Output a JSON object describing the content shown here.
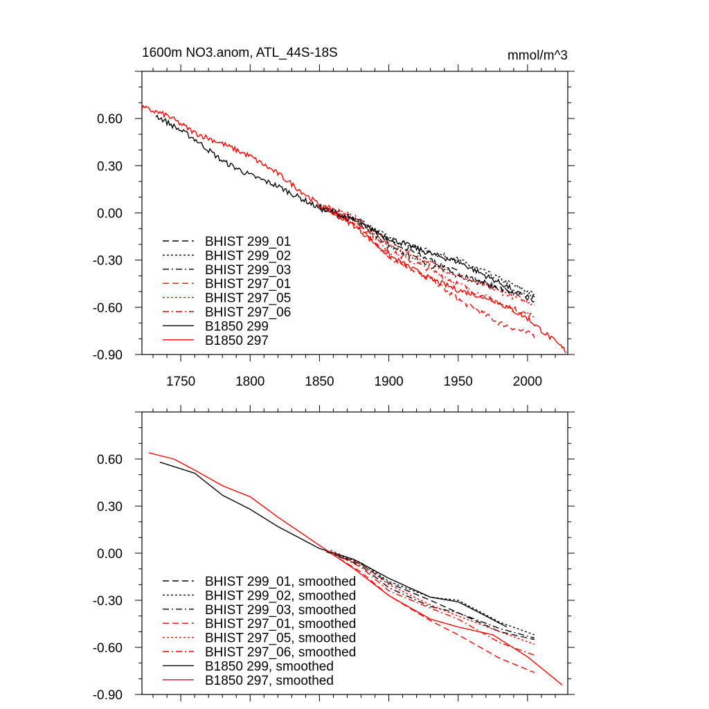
{
  "chart_data": [
    {
      "type": "line",
      "title": "1600m NO3.anom, ATL_44S-18S",
      "units": "mmol/m^3",
      "xlim": [
        1722,
        2029
      ],
      "ylim": [
        -0.9,
        0.9
      ],
      "xticks": [
        1750,
        1800,
        1850,
        1900,
        1950,
        2000
      ],
      "xtick_labels": [
        "1750",
        "1800",
        "1850",
        "1900",
        "1950",
        "2000"
      ],
      "yticks": [
        0.6,
        0.3,
        0.0,
        -0.3,
        -0.6,
        -0.9
      ],
      "ytick_labels": [
        "0.60",
        "0.30",
        "0.00",
        "-0.30",
        "-0.60",
        "-0.90"
      ],
      "legend_position": "bottom-left",
      "smoothed": false,
      "series": [
        {
          "name": "BHIST 299_01",
          "color": "#000000",
          "dash": "dashed",
          "points": [
            [
              1850,
              0.04
            ],
            [
              1880,
              -0.06
            ],
            [
              1900,
              -0.18
            ],
            [
              1930,
              -0.3
            ],
            [
              1950,
              -0.38
            ],
            [
              1980,
              -0.48
            ],
            [
              2005,
              -0.56
            ]
          ]
        },
        {
          "name": "BHIST 299_02",
          "color": "#000000",
          "dash": "dotted",
          "points": [
            [
              1850,
              0.04
            ],
            [
              1880,
              -0.05
            ],
            [
              1900,
              -0.16
            ],
            [
              1930,
              -0.25
            ],
            [
              1950,
              -0.3
            ],
            [
              1980,
              -0.42
            ],
            [
              2005,
              -0.52
            ]
          ]
        },
        {
          "name": "BHIST 299_03",
          "color": "#000000",
          "dash": "dashdot",
          "points": [
            [
              1850,
              0.04
            ],
            [
              1880,
              -0.07
            ],
            [
              1900,
              -0.22
            ],
            [
              1930,
              -0.33
            ],
            [
              1950,
              -0.4
            ],
            [
              1980,
              -0.48
            ],
            [
              2005,
              -0.54
            ]
          ]
        },
        {
          "name": "BHIST 297_01",
          "color": "#ff0000",
          "dash": "dashed",
          "points": [
            [
              1855,
              0.03
            ],
            [
              1880,
              -0.1
            ],
            [
              1900,
              -0.28
            ],
            [
              1930,
              -0.42
            ],
            [
              1950,
              -0.55
            ],
            [
              1980,
              -0.7
            ],
            [
              2005,
              -0.78
            ]
          ]
        },
        {
          "name": "BHIST 297_05",
          "color": "#ff0000",
          "dash": "dotted",
          "points": [
            [
              1855,
              0.05
            ],
            [
              1880,
              -0.05
            ],
            [
              1900,
              -0.2
            ],
            [
              1930,
              -0.32
            ],
            [
              1950,
              -0.4
            ],
            [
              1980,
              -0.5
            ],
            [
              2005,
              -0.58
            ]
          ]
        },
        {
          "name": "BHIST 297_06",
          "color": "#ff0000",
          "dash": "dashdot",
          "points": [
            [
              1855,
              0.04
            ],
            [
              1880,
              -0.08
            ],
            [
              1900,
              -0.24
            ],
            [
              1930,
              -0.36
            ],
            [
              1950,
              -0.45
            ],
            [
              1980,
              -0.58
            ],
            [
              2005,
              -0.66
            ]
          ]
        },
        {
          "name": "B1850 299",
          "color": "#000000",
          "dash": "solid",
          "points": [
            [
              1732,
              0.62
            ],
            [
              1760,
              0.47
            ],
            [
              1780,
              0.33
            ],
            [
              1800,
              0.24
            ],
            [
              1820,
              0.17
            ],
            [
              1850,
              0.03
            ],
            [
              1875,
              -0.05
            ],
            [
              1900,
              -0.16
            ],
            [
              1930,
              -0.26
            ],
            [
              1950,
              -0.31
            ],
            [
              1970,
              -0.4
            ],
            [
              1988,
              -0.48
            ]
          ]
        },
        {
          "name": "B1850 297",
          "color": "#ff0000",
          "dash": "solid",
          "points": [
            [
              1722,
              0.67
            ],
            [
              1740,
              0.62
            ],
            [
              1760,
              0.51
            ],
            [
              1780,
              0.44
            ],
            [
              1800,
              0.36
            ],
            [
              1820,
              0.25
            ],
            [
              1850,
              0.05
            ],
            [
              1875,
              -0.08
            ],
            [
              1900,
              -0.27
            ],
            [
              1930,
              -0.42
            ],
            [
              1950,
              -0.49
            ],
            [
              1975,
              -0.55
            ],
            [
              2000,
              -0.67
            ],
            [
              2028,
              -0.88
            ]
          ]
        }
      ]
    },
    {
      "type": "line",
      "xlim": [
        1722,
        2029
      ],
      "ylim": [
        -0.9,
        0.9
      ],
      "xticks": [
        1750,
        1800,
        1850,
        1900,
        1950,
        2000
      ],
      "yticks": [
        0.6,
        0.3,
        0.0,
        -0.3,
        -0.6,
        -0.9
      ],
      "ytick_labels": [
        "0.60",
        "0.30",
        "0.00",
        "-0.30",
        "-0.60",
        "-0.90"
      ],
      "legend_position": "bottom-left",
      "smoothed": true,
      "series": [
        {
          "name": "BHIST 299_01, smoothed",
          "color": "#000000",
          "dash": "dashed",
          "points": [
            [
              1855,
              0.01
            ],
            [
              1880,
              -0.07
            ],
            [
              1900,
              -0.19
            ],
            [
              1930,
              -0.3
            ],
            [
              1950,
              -0.38
            ],
            [
              1980,
              -0.5
            ],
            [
              2005,
              -0.55
            ]
          ]
        },
        {
          "name": "BHIST 299_02, smoothed",
          "color": "#000000",
          "dash": "dotted",
          "points": [
            [
              1855,
              0.01
            ],
            [
              1880,
              -0.06
            ],
            [
              1900,
              -0.18
            ],
            [
              1930,
              -0.28
            ],
            [
              1950,
              -0.3
            ],
            [
              1980,
              -0.44
            ],
            [
              2005,
              -0.52
            ]
          ]
        },
        {
          "name": "BHIST 299_03, smoothed",
          "color": "#000000",
          "dash": "dashdot",
          "points": [
            [
              1855,
              0.01
            ],
            [
              1880,
              -0.08
            ],
            [
              1900,
              -0.22
            ],
            [
              1930,
              -0.34
            ],
            [
              1950,
              -0.38
            ],
            [
              1980,
              -0.48
            ],
            [
              2005,
              -0.54
            ]
          ]
        },
        {
          "name": "BHIST 297_01, smoothed",
          "color": "#ff0000",
          "dash": "dashed",
          "points": [
            [
              1858,
              0.0
            ],
            [
              1880,
              -0.12
            ],
            [
              1900,
              -0.27
            ],
            [
              1930,
              -0.43
            ],
            [
              1950,
              -0.52
            ],
            [
              1980,
              -0.67
            ],
            [
              2005,
              -0.76
            ]
          ]
        },
        {
          "name": "BHIST 297_05, smoothed",
          "color": "#ff0000",
          "dash": "dotted",
          "points": [
            [
              1858,
              0.02
            ],
            [
              1880,
              -0.07
            ],
            [
              1900,
              -0.2
            ],
            [
              1930,
              -0.33
            ],
            [
              1950,
              -0.4
            ],
            [
              1980,
              -0.5
            ],
            [
              2005,
              -0.58
            ]
          ]
        },
        {
          "name": "BHIST 297_06, smoothed",
          "color": "#ff0000",
          "dash": "dashdot",
          "points": [
            [
              1858,
              0.01
            ],
            [
              1880,
              -0.09
            ],
            [
              1900,
              -0.24
            ],
            [
              1930,
              -0.35
            ],
            [
              1950,
              -0.42
            ],
            [
              1980,
              -0.57
            ],
            [
              2005,
              -0.65
            ]
          ]
        },
        {
          "name": "B1850 299, smoothed",
          "color": "#000000",
          "dash": "solid",
          "points": [
            [
              1735,
              0.58
            ],
            [
              1760,
              0.51
            ],
            [
              1780,
              0.37
            ],
            [
              1800,
              0.28
            ],
            [
              1820,
              0.17
            ],
            [
              1850,
              0.03
            ],
            [
              1875,
              -0.04
            ],
            [
              1900,
              -0.16
            ],
            [
              1930,
              -0.28
            ],
            [
              1950,
              -0.31
            ],
            [
              1970,
              -0.4
            ],
            [
              1985,
              -0.47
            ]
          ]
        },
        {
          "name": "B1850 297, smoothed",
          "color": "#ff0000",
          "dash": "solid",
          "points": [
            [
              1727,
              0.64
            ],
            [
              1745,
              0.6
            ],
            [
              1760,
              0.53
            ],
            [
              1780,
              0.43
            ],
            [
              1800,
              0.36
            ],
            [
              1820,
              0.23
            ],
            [
              1850,
              0.05
            ],
            [
              1875,
              -0.1
            ],
            [
              1900,
              -0.27
            ],
            [
              1930,
              -0.42
            ],
            [
              1950,
              -0.47
            ],
            [
              1975,
              -0.52
            ],
            [
              2000,
              -0.66
            ],
            [
              2025,
              -0.84
            ]
          ]
        }
      ]
    }
  ]
}
